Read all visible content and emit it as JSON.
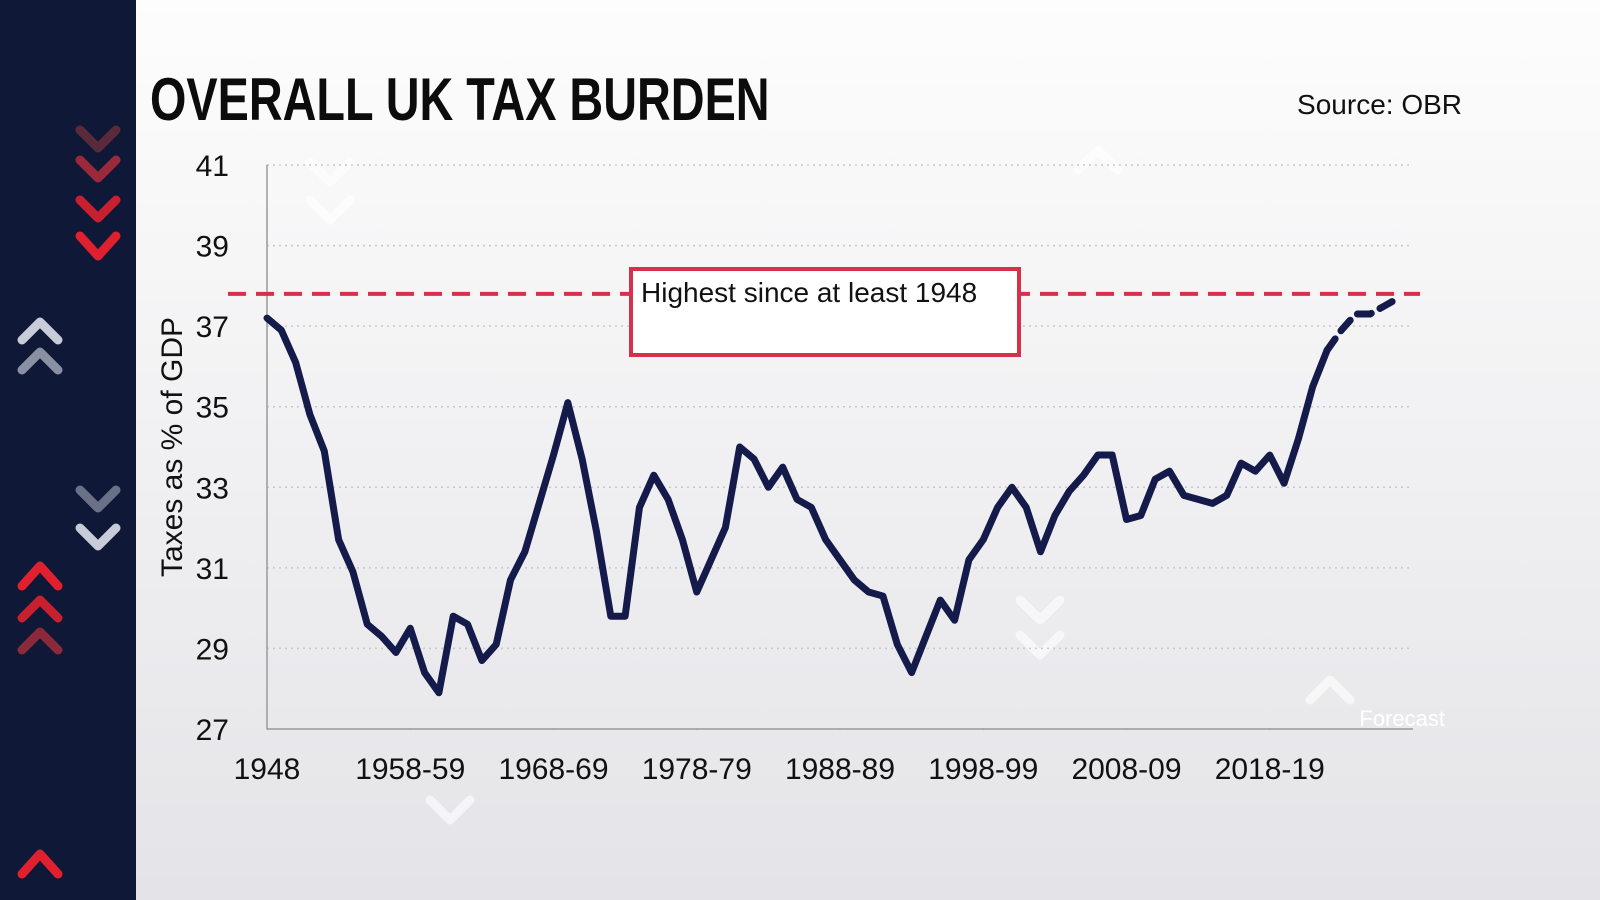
{
  "chart_data": {
    "type": "line",
    "title": "OVERALL UK TAX BURDEN",
    "source": "Source: OBR",
    "y_label": "Taxes as % of GDP",
    "annotation": "Highest since at least 1948",
    "forecast_label": "Forecast",
    "x": [
      1948,
      1949,
      1950,
      1951,
      1952,
      1953,
      1954,
      1955,
      1956,
      1957,
      1958,
      1959,
      1960,
      1961,
      1962,
      1963,
      1964,
      1965,
      1966,
      1967,
      1968,
      1969,
      1970,
      1971,
      1972,
      1973,
      1974,
      1975,
      1976,
      1977,
      1978,
      1979,
      1980,
      1981,
      1982,
      1983,
      1984,
      1985,
      1986,
      1987,
      1988,
      1989,
      1990,
      1991,
      1992,
      1993,
      1994,
      1995,
      1996,
      1997,
      1998,
      1999,
      2000,
      2001,
      2002,
      2003,
      2004,
      2005,
      2006,
      2007,
      2008,
      2009,
      2010,
      2011,
      2012,
      2013,
      2014,
      2015,
      2016,
      2017,
      2018,
      2019,
      2020,
      2021,
      2022,
      2023,
      2024,
      2025,
      2026,
      2027
    ],
    "xlim": [
      1948,
      2028
    ],
    "xticks": [
      1948,
      {
        "value": 1958,
        "label": "1958-59"
      },
      {
        "value": 1968,
        "label": "1968-69"
      },
      {
        "value": 1978,
        "label": "1978-79"
      },
      {
        "value": 1988,
        "label": "1988-89"
      },
      {
        "value": 1998,
        "label": "1998-99"
      },
      {
        "value": 2008,
        "label": "2008-09"
      },
      {
        "value": 2018,
        "label": "2018-19"
      }
    ],
    "ylim": [
      27,
      41
    ],
    "yticks": [
      27,
      29,
      31,
      33,
      35,
      37,
      39,
      41
    ],
    "grid": true,
    "reference_line": {
      "value": 37.8,
      "color": "#d6304a"
    },
    "series": [
      {
        "color": "#141a4a",
        "dashed": false,
        "values": [
          37.2,
          36.9,
          36.1,
          34.8,
          33.9,
          31.7,
          30.9,
          29.6,
          29.3,
          28.9,
          29.5,
          28.4,
          27.9,
          29.8,
          29.6,
          28.7,
          29.1,
          30.7,
          31.4,
          32.6,
          33.8,
          35.1,
          33.7,
          31.9,
          29.8,
          29.8,
          32.5,
          33.3,
          32.7,
          31.7,
          30.4,
          31.2,
          32.0,
          34.0,
          33.7,
          33.0,
          33.5,
          32.7,
          32.5,
          31.7,
          31.2,
          30.7,
          30.4,
          30.3,
          29.1,
          28.4,
          29.3,
          30.2,
          29.7,
          31.2,
          31.7,
          32.5,
          33.0,
          32.5,
          31.4,
          32.3,
          32.9,
          33.3,
          33.8,
          33.8,
          32.2,
          32.3,
          33.2,
          33.4,
          32.8,
          32.7,
          32.6,
          32.8,
          33.6,
          33.4,
          33.8,
          33.1,
          34.2,
          35.5,
          36.4,
          null,
          null,
          null,
          null,
          null
        ]
      },
      {
        "color": "#141a4a",
        "dashed": true,
        "values": [
          null,
          null,
          null,
          null,
          null,
          null,
          null,
          null,
          null,
          null,
          null,
          null,
          null,
          null,
          null,
          null,
          null,
          null,
          null,
          null,
          null,
          null,
          null,
          null,
          null,
          null,
          null,
          null,
          null,
          null,
          null,
          null,
          null,
          null,
          null,
          null,
          null,
          null,
          null,
          null,
          null,
          null,
          null,
          null,
          null,
          null,
          null,
          null,
          null,
          null,
          null,
          null,
          null,
          null,
          null,
          null,
          null,
          null,
          null,
          null,
          null,
          null,
          null,
          null,
          null,
          null,
          null,
          null,
          null,
          null,
          null,
          null,
          null,
          null,
          36.4,
          36.9,
          37.3,
          37.3,
          37.5,
          37.7
        ]
      }
    ]
  }
}
